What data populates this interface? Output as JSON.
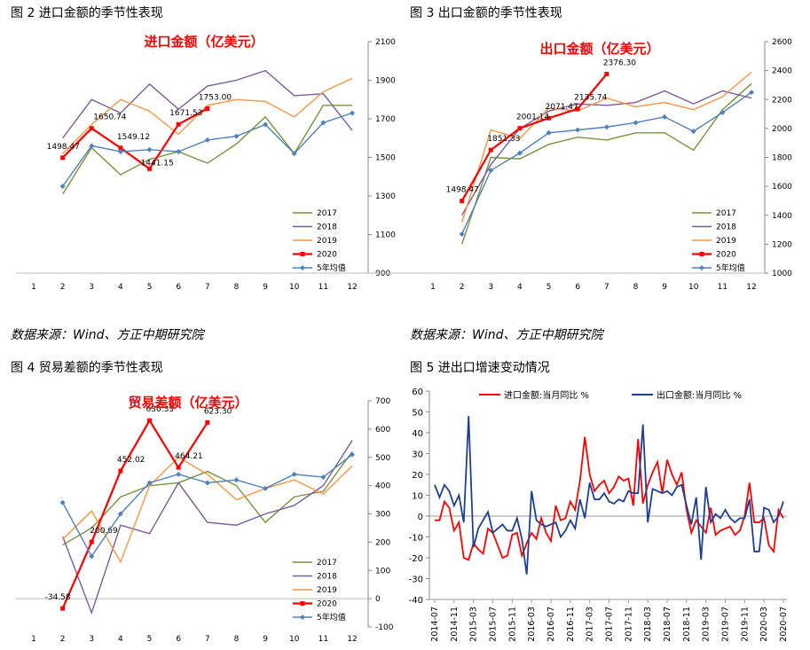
{
  "captions": {
    "fig2": "图 2   进口金额的季节性表现",
    "fig3": "图 3   出口金额的季节性表现",
    "fig4": "图 4   贸易差额的季节性表现",
    "fig5": "图 5   进出口增速变动情况"
  },
  "sources": {
    "left": "数据来源：Wind、方正中期研究院",
    "right": "数据来源：Wind、方正中期研究院"
  },
  "colors": {
    "y2017": "#77933c",
    "y2018": "#7d5a9b",
    "y2019": "#f79646",
    "y2020": "#ff0000",
    "avg": "#4f81bd",
    "import_yoy": "#ff0000",
    "export_yoy": "#1f3f93"
  },
  "chart_data": [
    {
      "id": "fig2",
      "type": "line",
      "title": "进口金额（亿美元）",
      "x": [
        "1",
        "2",
        "3",
        "4",
        "5",
        "6",
        "7",
        "8",
        "9",
        "10",
        "11",
        "12"
      ],
      "ylim": [
        900,
        2100
      ],
      "yticks": [
        900,
        1100,
        1300,
        1500,
        1700,
        1900,
        2100
      ],
      "series": [
        {
          "name": "2017",
          "color": "#77933c",
          "values": [
            null,
            1310,
            1550,
            1410,
            1490,
            1530,
            1470,
            1570,
            1710,
            1520,
            1770,
            1770
          ]
        },
        {
          "name": "2018",
          "color": "#7d5a9b",
          "values": [
            null,
            1600,
            1800,
            1730,
            1880,
            1750,
            1870,
            1900,
            1950,
            1820,
            1830,
            1640
          ]
        },
        {
          "name": "2019",
          "color": "#f79646",
          "values": [
            null,
            1520,
            1670,
            1800,
            1740,
            1620,
            1770,
            1800,
            1790,
            1710,
            1840,
            1910
          ]
        },
        {
          "name": "2020",
          "color": "#ff0000",
          "marker": "square",
          "values": [
            null,
            1498.47,
            1650.74,
            1549.12,
            1441.15,
            1671.53,
            1753.0,
            null,
            null,
            null,
            null,
            null
          ],
          "labels": [
            "1498.47",
            "1650.74",
            "1549.12",
            "1441.15",
            "1671.53",
            "1753.00"
          ]
        },
        {
          "name": "5年均值",
          "color": "#4f81bd",
          "marker": "diamond",
          "values": [
            null,
            1350,
            1560,
            1530,
            1540,
            1530,
            1590,
            1610,
            1670,
            1520,
            1680,
            1730
          ]
        }
      ],
      "legend": "bottom-right"
    },
    {
      "id": "fig3",
      "type": "line",
      "title": "出口金额（亿美元）",
      "x": [
        "1",
        "2",
        "3",
        "4",
        "5",
        "6",
        "7",
        "8",
        "9",
        "10",
        "11",
        "12"
      ],
      "ylim": [
        1000,
        2600
      ],
      "yticks": [
        1000,
        1200,
        1400,
        1600,
        1800,
        2000,
        2200,
        2400,
        2600
      ],
      "series": [
        {
          "name": "2017",
          "color": "#77933c",
          "values": [
            null,
            1200,
            1800,
            1790,
            1890,
            1940,
            1920,
            1970,
            1970,
            1850,
            2130,
            2310
          ]
        },
        {
          "name": "2018",
          "color": "#7d5a9b",
          "values": [
            null,
            1400,
            1750,
            2000,
            2120,
            2170,
            2160,
            2180,
            2260,
            2170,
            2260,
            2210
          ]
        },
        {
          "name": "2019",
          "color": "#f79646",
          "values": [
            null,
            1350,
            1990,
            1930,
            2140,
            2120,
            2210,
            2150,
            2180,
            2130,
            2220,
            2390
          ]
        },
        {
          "name": "2020",
          "color": "#ff0000",
          "marker": "square",
          "values": [
            null,
            1498.47,
            1851.33,
            2001.14,
            2071.47,
            2135.74,
            2376.3,
            null,
            null,
            null,
            null,
            null
          ],
          "labels": [
            "1498.47",
            "1851.33",
            "2001.14",
            "2071.47",
            "2135.74",
            "2376.30"
          ]
        },
        {
          "name": "5年均值",
          "color": "#4f81bd",
          "marker": "diamond",
          "values": [
            null,
            1270,
            1710,
            1830,
            1970,
            1990,
            2010,
            2040,
            2080,
            1980,
            2110,
            2250
          ]
        }
      ],
      "legend": "bottom-right"
    },
    {
      "id": "fig4",
      "type": "line",
      "title": "贸易差额（亿美元）",
      "x": [
        "1",
        "2",
        "3",
        "4",
        "5",
        "6",
        "7",
        "8",
        "9",
        "10",
        "11",
        "12"
      ],
      "ylim": [
        -100,
        700
      ],
      "yticks": [
        -100,
        0,
        100,
        200,
        300,
        400,
        500,
        600,
        700
      ],
      "series": [
        {
          "name": "2017",
          "color": "#77933c",
          "values": [
            null,
            190,
            250,
            360,
            400,
            410,
            450,
            400,
            270,
            360,
            380,
            520
          ]
        },
        {
          "name": "2018",
          "color": "#7d5a9b",
          "values": [
            null,
            220,
            -50,
            260,
            230,
            410,
            270,
            260,
            300,
            330,
            400,
            560
          ]
        },
        {
          "name": "2019",
          "color": "#f79646",
          "values": [
            null,
            210,
            310,
            130,
            400,
            500,
            440,
            350,
            390,
            420,
            370,
            470
          ]
        },
        {
          "name": "2020",
          "color": "#ff0000",
          "marker": "square",
          "values": [
            null,
            -34.58,
            200.69,
            452.02,
            630.33,
            464.21,
            623.3,
            null,
            null,
            null,
            null,
            null
          ],
          "labels": [
            "-34.58",
            "200.69",
            "452.02",
            "630.33",
            "464.21",
            "623.30"
          ]
        },
        {
          "name": "5年均值",
          "color": "#4f81bd",
          "marker": "diamond",
          "values": [
            null,
            340,
            150,
            300,
            410,
            440,
            410,
            420,
            390,
            440,
            430,
            510
          ]
        }
      ],
      "legend": "bottom-right"
    },
    {
      "id": "fig5",
      "type": "line",
      "x": [
        "2014-07",
        "2014-08",
        "2014-09",
        "2014-10",
        "2014-11",
        "2014-12",
        "2015-01",
        "2015-02",
        "2015-03",
        "2015-04",
        "2015-05",
        "2015-06",
        "2015-07",
        "2015-08",
        "2015-09",
        "2015-10",
        "2015-11",
        "2015-12",
        "2016-01",
        "2016-02",
        "2016-03",
        "2016-04",
        "2016-05",
        "2016-06",
        "2016-07",
        "2016-08",
        "2016-09",
        "2016-10",
        "2016-11",
        "2016-12",
        "2017-01",
        "2017-02",
        "2017-03",
        "2017-04",
        "2017-05",
        "2017-06",
        "2017-07",
        "2017-08",
        "2017-09",
        "2017-10",
        "2017-11",
        "2017-12",
        "2018-01",
        "2018-02",
        "2018-03",
        "2018-04",
        "2018-05",
        "2018-06",
        "2018-07",
        "2018-08",
        "2018-09",
        "2018-10",
        "2018-11",
        "2018-12",
        "2019-01",
        "2019-02",
        "2019-03",
        "2019-04",
        "2019-05",
        "2019-06",
        "2019-07",
        "2019-08",
        "2019-09",
        "2019-10",
        "2019-11",
        "2019-12",
        "2020-01",
        "2020-02",
        "2020-03",
        "2020-04",
        "2020-05",
        "2020-06",
        "2020-07"
      ],
      "xticks": [
        "2014-07",
        "2014-11",
        "2015-03",
        "2015-07",
        "2015-11",
        "2016-03",
        "2016-07",
        "2016-11",
        "2017-03",
        "2017-07",
        "2017-11",
        "2018-03",
        "2018-07",
        "2018-11",
        "2019-03",
        "2019-07",
        "2019-11",
        "2020-03",
        "2020-07"
      ],
      "ylim": [
        -40,
        60
      ],
      "yticks": [
        -40,
        -30,
        -20,
        -10,
        0,
        10,
        20,
        30,
        40,
        50,
        60
      ],
      "series": [
        {
          "name": "进口金额:当月同比  %",
          "color": "#ff0000",
          "values": [
            -2,
            -2,
            7,
            4,
            -7,
            -3,
            -20,
            -21,
            -13,
            -16,
            -18,
            -6,
            -8,
            -14,
            -20,
            -19,
            -9,
            -8,
            -19,
            -13,
            -8,
            -11,
            -1,
            -8,
            -12,
            5,
            -2,
            -1,
            7,
            3,
            17,
            38,
            20,
            12,
            15,
            17,
            11,
            14,
            19,
            17,
            18,
            5,
            37,
            6,
            15,
            21,
            26,
            11,
            27,
            20,
            15,
            21,
            3,
            -8,
            -2,
            -5,
            -8,
            4,
            -9,
            -7,
            -6,
            -5,
            -9,
            -7,
            0,
            16,
            -3,
            -3,
            -1,
            -14,
            -17,
            3,
            -1
          ]
        },
        {
          "name": "出口金额:当月同比  %",
          "color": "#1f3f93",
          "values": [
            15,
            9,
            15,
            12,
            5,
            10,
            -3,
            48,
            -15,
            -6,
            -2,
            2,
            -8,
            -6,
            -4,
            -7,
            -7,
            -1,
            -11,
            -28,
            12,
            -2,
            -4,
            -5,
            -4,
            -3,
            -10,
            -7,
            -2,
            -6,
            8,
            -1,
            16,
            8,
            8,
            11,
            7,
            6,
            8,
            7,
            12,
            11,
            11,
            44,
            -3,
            13,
            12,
            11,
            12,
            10,
            14,
            15,
            5,
            -4,
            9,
            -21,
            14,
            -3,
            1,
            -1,
            3,
            -1,
            -3,
            -1,
            -1,
            8,
            -17,
            -17,
            4,
            3,
            -3,
            0,
            7
          ]
        }
      ],
      "legend": "top"
    }
  ]
}
